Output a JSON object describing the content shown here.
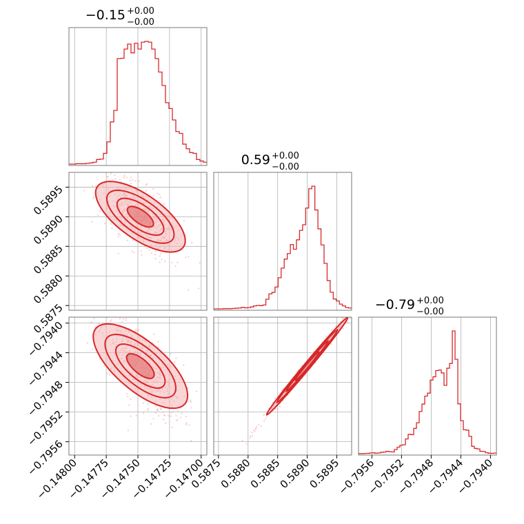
{
  "chart_data": {
    "type": "corner",
    "parameters": [
      {
        "title_value": "−0.15",
        "title_plus": "+0.00",
        "title_minus": "−0.00",
        "ticks": [
          -0.148,
          -0.14775,
          -0.1475,
          -0.14725,
          -0.147
        ],
        "tick_labels": [
          "−0.14800",
          "−0.14775",
          "−0.14750",
          "−0.14725",
          "−0.14700"
        ],
        "range": [
          -0.148045,
          -0.146955
        ]
      },
      {
        "title_value": "0.59",
        "title_plus": "+0.00",
        "title_minus": "−0.00",
        "ticks": [
          0.5875,
          0.588,
          0.5885,
          0.589,
          0.5895
        ],
        "tick_labels": [
          "0.5875",
          "0.5880",
          "0.5885",
          "0.5890",
          "0.5895"
        ],
        "range": [
          0.58742,
          0.58975
        ]
      },
      {
        "title_value": "−0.79",
        "title_plus": "+0.00",
        "title_minus": "−0.00",
        "ticks": [
          -0.7956,
          -0.7952,
          -0.7948,
          -0.7944,
          -0.794
        ],
        "tick_labels": [
          "−0.7956",
          "−0.7952",
          "−0.7948",
          "−0.7944",
          "−0.7940"
        ],
        "range": [
          -0.79578,
          -0.79392
        ]
      }
    ],
    "hist1d": [
      {
        "counts": [
          0,
          0,
          1,
          1,
          1,
          2,
          3,
          5,
          12,
          13,
          28,
          58,
          110,
          140,
          275,
          276,
          300,
          313,
          290,
          315,
          300,
          318,
          320,
          318,
          300,
          275,
          240,
          205,
          160,
          145,
          115,
          85,
          80,
          52,
          40,
          30,
          28,
          12,
          8,
          5
        ]
      },
      {
        "counts": [
          0,
          0,
          0,
          1,
          1,
          1,
          2,
          3,
          4,
          7,
          5,
          6,
          9,
          14,
          16,
          15,
          18,
          45,
          70,
          77,
          102,
          145,
          190,
          232,
          258,
          300,
          278,
          322,
          366,
          392,
          470,
          560,
          572,
          461,
          373,
          298,
          212,
          132,
          78,
          46,
          37,
          22,
          14,
          6,
          4
        ]
      },
      {
        "counts": [
          1,
          0,
          2,
          3,
          6,
          7,
          4,
          6,
          12,
          14,
          20,
          16,
          15,
          35,
          55,
          71,
          75,
          124,
          163,
          160,
          213,
          260,
          356,
          418,
          485,
          510,
          620,
          648,
          700,
          705,
          680,
          576,
          720,
          760,
          1034,
          795,
          420,
          278,
          201,
          198,
          146,
          62,
          44,
          40,
          20,
          19,
          8,
          4,
          3,
          5
        ]
      }
    ],
    "colors": {
      "series": "#d62728",
      "fill": "#f4b3b4",
      "grid": "#b0b0b0",
      "frame": "#777777"
    },
    "grid": true
  }
}
